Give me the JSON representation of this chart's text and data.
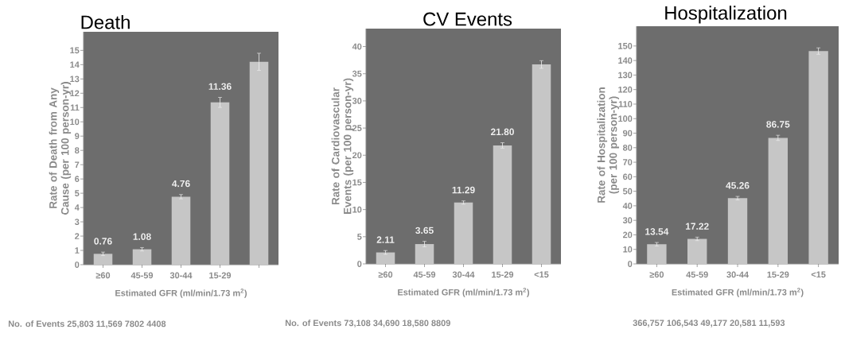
{
  "chart_data": [
    {
      "type": "bar",
      "title": "Death",
      "xlabel": "Estimated GFR (ml/min/1.73 m$^{2}$)",
      "ylabel": "Rate of Death from Any Cause (per 100 person-yr)",
      "categories": [
        "≥60",
        "45-59",
        "30-44",
        "15-29",
        null
      ],
      "values": [
        0.76,
        1.08,
        4.76,
        11.36,
        14.2
      ],
      "errors": [
        0.12,
        0.12,
        0.15,
        0.35,
        0.6
      ],
      "value_labels": [
        "0.76",
        "1.08",
        "4.76",
        "11.36",
        null
      ],
      "color": "#c6c6c6",
      "ylim": [
        0,
        16.3
      ],
      "yticks": [
        0,
        1,
        2,
        3,
        4,
        5,
        6,
        7,
        8,
        9,
        10,
        11,
        12,
        13,
        14,
        15
      ],
      "annotations": [
        "No. of Events 25,803 11,569 7802 4408"
      ]
    },
    {
      "type": "bar",
      "title": "CV Events",
      "xlabel": "Estimated GFR (ml/min/1.73 m$^{2}$)",
      "ylabel": "Rate of Cardiovascular Events (per 100 person-yr)",
      "categories": [
        "≥60",
        "45-59",
        "30-44",
        "15-29",
        "<15"
      ],
      "values": [
        2.11,
        3.65,
        11.29,
        21.8,
        36.7
      ],
      "errors": [
        0.35,
        0.5,
        0.3,
        0.5,
        0.7
      ],
      "value_labels": [
        "2.11",
        "3.65",
        "11.29",
        "21.80",
        null
      ],
      "color": "#c6c6c6",
      "ylim": [
        0,
        43.3
      ],
      "yticks": [
        0,
        5,
        10,
        15,
        20,
        25,
        30,
        35,
        40
      ],
      "annotations": [
        "No. of Events 73,108 34,690 18,580 8809"
      ]
    },
    {
      "type": "bar",
      "title": "Hospitalization",
      "xlabel": "Estimated GFR (ml/min/1.73 m$^{2}$)",
      "ylabel": "Rate of Hospitalization (per 100 person-yr)",
      "categories": [
        "≥60",
        "45-59",
        "30-44",
        "15-29",
        "<15"
      ],
      "values": [
        13.54,
        17.22,
        45.26,
        86.75,
        146.5
      ],
      "errors": [
        1.2,
        1.2,
        1.2,
        1.8,
        2.2
      ],
      "value_labels": [
        "13.54",
        "17.22",
        "45.26",
        "86.75",
        null
      ],
      "color": "#c6c6c6",
      "ylim": [
        0,
        163.6
      ],
      "yticks": [
        0,
        10,
        20,
        30,
        40,
        50,
        60,
        70,
        80,
        90,
        100,
        110,
        120,
        130,
        140,
        150
      ],
      "annotations": [
        "366,757 106,543 49,177 20,581 11,593"
      ]
    }
  ]
}
